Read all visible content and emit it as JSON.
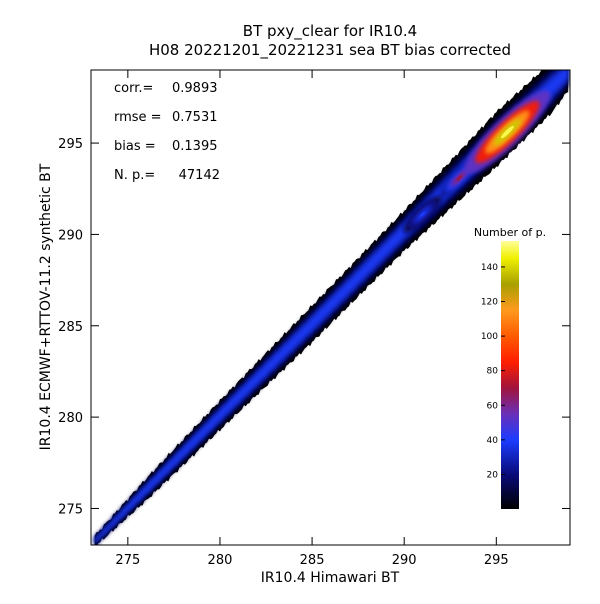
{
  "chart_data": {
    "type": "heatmap",
    "title": "BT pxy_clear for IR10.4",
    "subtitle": "H08 20221201_20221231 sea BT bias corrected",
    "xlabel": "IR10.4 Himawari BT",
    "ylabel": "IR10.4 ECMWF+RTTOV-11.2 synthetic BT",
    "xlim": [
      273,
      299
    ],
    "ylim": [
      273,
      299
    ],
    "x_ticks": [
      275,
      280,
      285,
      290,
      295
    ],
    "y_ticks": [
      275,
      280,
      285,
      290,
      295
    ],
    "grid": false,
    "stats": [
      {
        "label": "corr.=",
        "value": "0.9893"
      },
      {
        "label": "rmse =",
        "value": "0.7531"
      },
      {
        "label": "bias =",
        "value": "0.1395"
      },
      {
        "label": "N. p.=",
        "value": "47142"
      }
    ],
    "colorbar": {
      "title": "Number of p.",
      "range": [
        0,
        155
      ],
      "ticks": [
        20,
        40,
        60,
        80,
        100,
        120,
        140
      ],
      "stops": [
        {
          "v": 0,
          "color": "#000000"
        },
        {
          "v": 20,
          "color": "#0a0a7a"
        },
        {
          "v": 40,
          "color": "#1b3dff"
        },
        {
          "v": 55,
          "color": "#6a2fb8"
        },
        {
          "v": 70,
          "color": "#a0143c"
        },
        {
          "v": 85,
          "color": "#ff1e00"
        },
        {
          "v": 100,
          "color": "#ff5a00"
        },
        {
          "v": 115,
          "color": "#ff9a1e"
        },
        {
          "v": 130,
          "color": "#a8a000"
        },
        {
          "v": 145,
          "color": "#f0f000"
        },
        {
          "v": 155,
          "color": "#ffff99"
        }
      ]
    },
    "density_band": {
      "centerline": [
        [
          273.2,
          273.2
        ],
        [
          280,
          280.1
        ],
        [
          285,
          285.1
        ],
        [
          290,
          290.2
        ],
        [
          295,
          295.2
        ],
        [
          299,
          299
        ]
      ],
      "half_width": [
        [
          273.2,
          0.3
        ],
        [
          276,
          0.6
        ],
        [
          280,
          0.8
        ],
        [
          285,
          1.0
        ],
        [
          290,
          1.1
        ],
        [
          295,
          1.5
        ],
        [
          298,
          1.4
        ],
        [
          299,
          1.0
        ]
      ],
      "peak": {
        "x": 295.6,
        "y": 295.6,
        "count": 150
      },
      "secondary_peaks": [
        {
          "x": 293.0,
          "y": 293.1,
          "count": 70
        },
        {
          "x": 291.0,
          "y": 291.1,
          "count": 40
        }
      ]
    }
  }
}
